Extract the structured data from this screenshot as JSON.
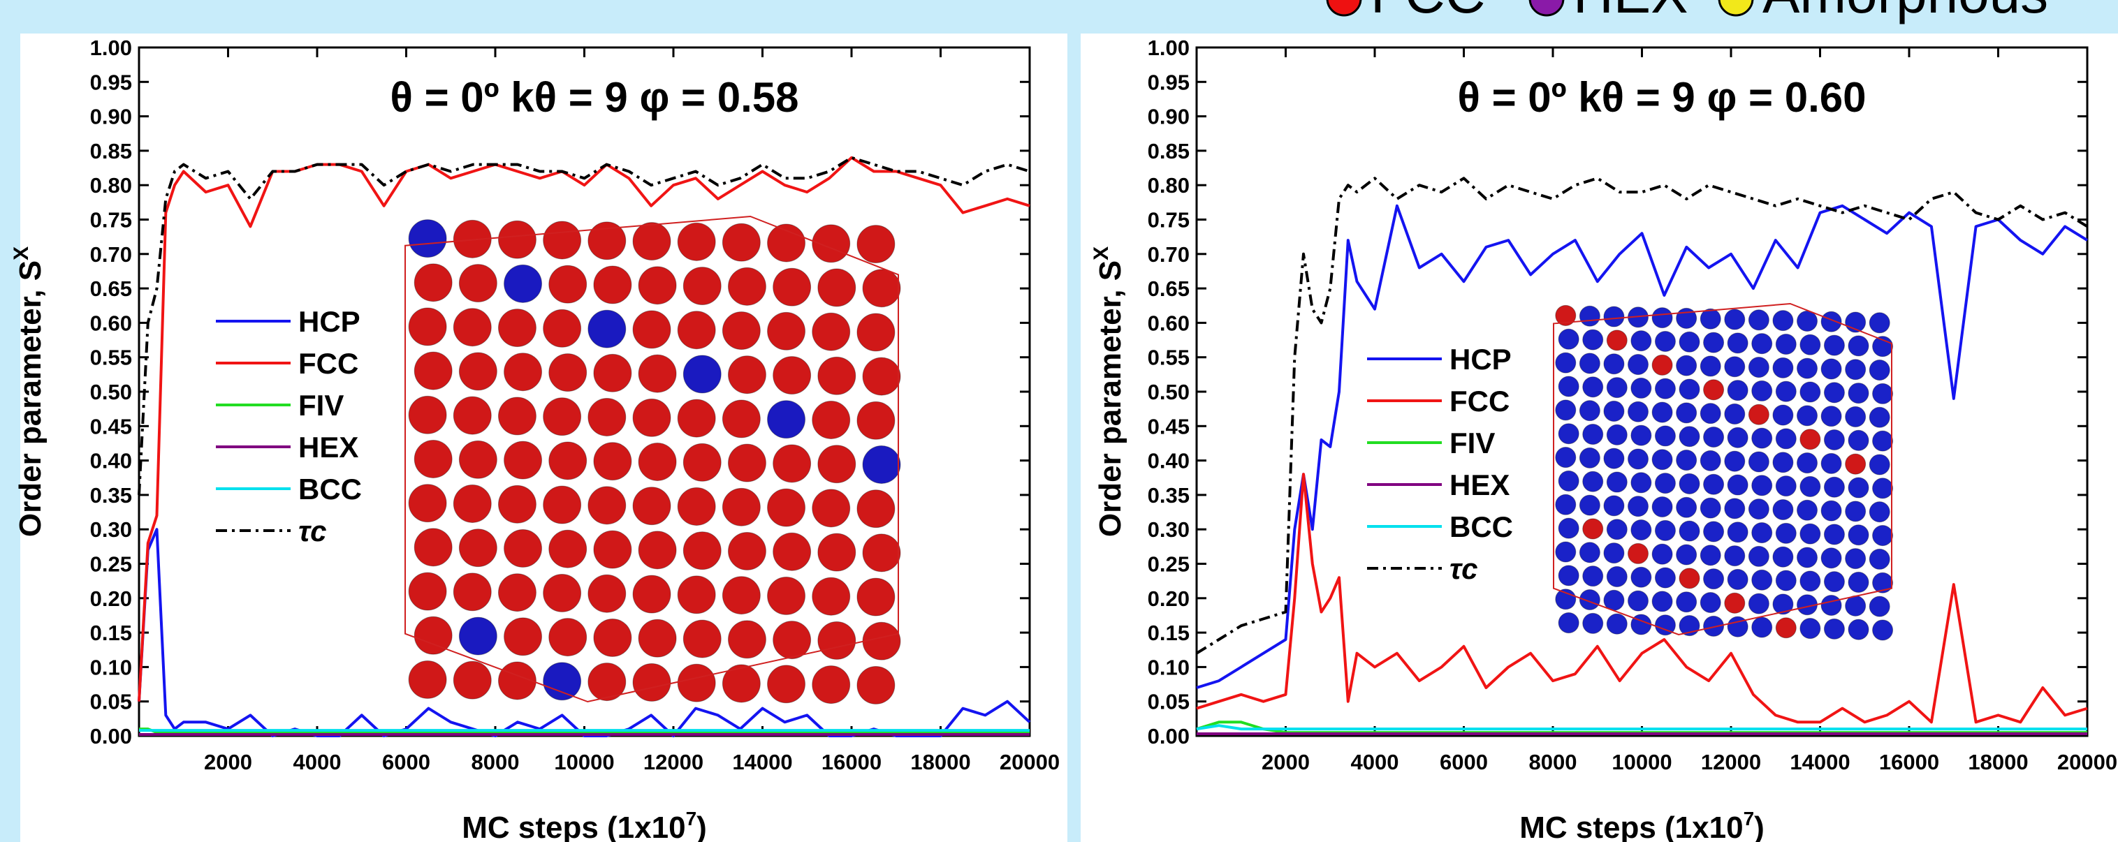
{
  "banner_legend": [
    {
      "name": "FCC",
      "color": "#ee1111"
    },
    {
      "name": "HEX",
      "color": "#8a1aa8"
    },
    {
      "name": "Amorphous",
      "color": "#f2e81a"
    }
  ],
  "chart_data": [
    {
      "type": "line",
      "title": "θ = 0º   kθ = 9   φ = 0.58",
      "xlabel": "MC steps (1x10",
      "xlabel_sup": "7",
      "xlabel_end": ")",
      "ylabel": "Order parameter, S",
      "ylabel_sup": "X",
      "xlim": [
        0,
        20000
      ],
      "ylim": [
        0,
        1
      ],
      "xticks": [
        2000,
        4000,
        6000,
        8000,
        10000,
        12000,
        14000,
        16000,
        18000,
        20000
      ],
      "yticks": [
        {
          "value": 0,
          "label": "0.00"
        },
        {
          "value": 0.05,
          "label": "0.05"
        },
        {
          "value": 0.1,
          "label": "0.10"
        },
        {
          "value": 0.15,
          "label": "0.15"
        },
        {
          "value": 0.2,
          "label": "0.20"
        },
        {
          "value": 0.25,
          "label": "0.25"
        },
        {
          "value": 0.3,
          "label": "0.30"
        },
        {
          "value": 0.35,
          "label": "0.35"
        },
        {
          "value": 0.4,
          "label": "0.40"
        },
        {
          "value": 0.45,
          "label": "0.45"
        },
        {
          "value": 0.5,
          "label": "0.50"
        },
        {
          "value": 0.55,
          "label": "0.55"
        },
        {
          "value": 0.6,
          "label": "0.60"
        },
        {
          "value": 0.65,
          "label": "0.65"
        },
        {
          "value": 0.7,
          "label": "0.70"
        },
        {
          "value": 0.75,
          "label": "0.75"
        },
        {
          "value": 0.8,
          "label": "0.80"
        },
        {
          "value": 0.85,
          "label": "0.85"
        },
        {
          "value": 0.9,
          "label": "0.90"
        },
        {
          "value": 0.95,
          "label": "0.95"
        },
        {
          "value": 1,
          "label": "1.00"
        }
      ],
      "x": [
        0,
        200,
        400,
        600,
        800,
        1000,
        1500,
        2000,
        2500,
        3000,
        3500,
        4000,
        4500,
        5000,
        5500,
        6000,
        6500,
        7000,
        7500,
        8000,
        8500,
        9000,
        9500,
        10000,
        10500,
        11000,
        11500,
        12000,
        12500,
        13000,
        13500,
        14000,
        14500,
        15000,
        15500,
        16000,
        16500,
        17000,
        17500,
        18000,
        18500,
        19000,
        19500,
        20000
      ],
      "series": [
        {
          "name": "HCP",
          "color": "#1414f0",
          "values": [
            0.05,
            0.27,
            0.3,
            0.03,
            0.01,
            0.02,
            0.02,
            0.01,
            0.03,
            0.0,
            0.01,
            0.0,
            0.0,
            0.03,
            0.0,
            0.01,
            0.04,
            0.02,
            0.01,
            0.0,
            0.02,
            0.01,
            0.03,
            0.0,
            0.0,
            0.01,
            0.03,
            0.0,
            0.04,
            0.03,
            0.01,
            0.04,
            0.02,
            0.03,
            0.0,
            0.0,
            0.01,
            0.0,
            0.0,
            0.0,
            0.04,
            0.03,
            0.05,
            0.02
          ]
        },
        {
          "name": "FCC",
          "color": "#f01414",
          "values": [
            0.05,
            0.28,
            0.32,
            0.76,
            0.8,
            0.82,
            0.79,
            0.8,
            0.74,
            0.82,
            0.82,
            0.83,
            0.83,
            0.82,
            0.77,
            0.82,
            0.83,
            0.81,
            0.82,
            0.83,
            0.82,
            0.81,
            0.82,
            0.8,
            0.83,
            0.81,
            0.77,
            0.8,
            0.81,
            0.78,
            0.8,
            0.82,
            0.8,
            0.79,
            0.81,
            0.84,
            0.82,
            0.82,
            0.81,
            0.8,
            0.76,
            0.77,
            0.78,
            0.77
          ]
        },
        {
          "name": "FIV",
          "color": "#22dd22",
          "values": [
            0.01,
            0.01,
            0.005,
            0.005,
            0.005,
            0.005,
            0.005,
            0.005,
            0.005,
            0.005,
            0.005,
            0.005,
            0.005,
            0.005,
            0.005,
            0.005,
            0.005,
            0.005,
            0.005,
            0.005,
            0.005,
            0.005,
            0.005,
            0.005,
            0.005,
            0.005,
            0.005,
            0.005,
            0.005,
            0.005,
            0.005,
            0.005,
            0.005,
            0.005,
            0.005,
            0.005,
            0.005,
            0.005,
            0.005,
            0.005,
            0.005,
            0.005,
            0.005,
            0.005
          ]
        },
        {
          "name": "HEX",
          "color": "#800080",
          "values": [
            0.002,
            0.002,
            0.002,
            0.002,
            0.002,
            0.002,
            0.002,
            0.002,
            0.002,
            0.002,
            0.002,
            0.002,
            0.002,
            0.002,
            0.002,
            0.002,
            0.002,
            0.002,
            0.002,
            0.002,
            0.002,
            0.002,
            0.002,
            0.002,
            0.002,
            0.002,
            0.002,
            0.002,
            0.002,
            0.002,
            0.002,
            0.002,
            0.002,
            0.002,
            0.002,
            0.002,
            0.002,
            0.002,
            0.002,
            0.002,
            0.002,
            0.002,
            0.002,
            0.002
          ]
        },
        {
          "name": "BCC",
          "color": "#00e0ee",
          "values": [
            0.008,
            0.008,
            0.008,
            0.008,
            0.008,
            0.008,
            0.008,
            0.008,
            0.008,
            0.008,
            0.008,
            0.008,
            0.008,
            0.008,
            0.008,
            0.008,
            0.008,
            0.008,
            0.008,
            0.008,
            0.008,
            0.008,
            0.008,
            0.008,
            0.008,
            0.008,
            0.008,
            0.008,
            0.008,
            0.008,
            0.008,
            0.008,
            0.008,
            0.008,
            0.008,
            0.008,
            0.008,
            0.008,
            0.008,
            0.008,
            0.008,
            0.008,
            0.008,
            0.008
          ]
        },
        {
          "name": "τc",
          "color": "#000000",
          "dash": "dash-dot",
          "values": [
            0.35,
            0.6,
            0.65,
            0.78,
            0.82,
            0.83,
            0.81,
            0.82,
            0.78,
            0.82,
            0.82,
            0.83,
            0.83,
            0.83,
            0.8,
            0.82,
            0.83,
            0.82,
            0.83,
            0.83,
            0.83,
            0.82,
            0.82,
            0.81,
            0.83,
            0.82,
            0.8,
            0.81,
            0.82,
            0.8,
            0.81,
            0.83,
            0.81,
            0.81,
            0.82,
            0.84,
            0.83,
            0.82,
            0.82,
            0.81,
            0.8,
            0.82,
            0.83,
            0.82
          ]
        }
      ]
    },
    {
      "type": "line",
      "title": "θ = 0º   kθ = 9   φ = 0.60",
      "xlabel": "MC steps (1x10",
      "xlabel_sup": "7",
      "xlabel_end": ")",
      "ylabel": "Order parameter, S",
      "ylabel_sup": "X",
      "xlim": [
        0,
        20000
      ],
      "ylim": [
        0,
        1
      ],
      "xticks": [
        2000,
        4000,
        6000,
        8000,
        10000,
        12000,
        14000,
        16000,
        18000,
        20000
      ],
      "yticks": [
        {
          "value": 0,
          "label": "0.00"
        },
        {
          "value": 0.05,
          "label": "0.05"
        },
        {
          "value": 0.1,
          "label": "0.10"
        },
        {
          "value": 0.15,
          "label": "0.15"
        },
        {
          "value": 0.2,
          "label": "0.20"
        },
        {
          "value": 0.25,
          "label": "0.25"
        },
        {
          "value": 0.3,
          "label": "0.30"
        },
        {
          "value": 0.35,
          "label": "0.35"
        },
        {
          "value": 0.4,
          "label": "0.40"
        },
        {
          "value": 0.45,
          "label": "0.45"
        },
        {
          "value": 0.5,
          "label": "0.50"
        },
        {
          "value": 0.55,
          "label": "0.55"
        },
        {
          "value": 0.6,
          "label": "0.60"
        },
        {
          "value": 0.65,
          "label": "0.65"
        },
        {
          "value": 0.7,
          "label": "0.70"
        },
        {
          "value": 0.75,
          "label": "0.75"
        },
        {
          "value": 0.8,
          "label": "0.80"
        },
        {
          "value": 0.85,
          "label": "0.85"
        },
        {
          "value": 0.9,
          "label": "0.90"
        },
        {
          "value": 0.95,
          "label": "0.95"
        },
        {
          "value": 1,
          "label": "1.00"
        }
      ],
      "x": [
        0,
        500,
        1000,
        1500,
        2000,
        2200,
        2400,
        2600,
        2800,
        3000,
        3200,
        3400,
        3600,
        4000,
        4500,
        5000,
        5500,
        6000,
        6500,
        7000,
        7500,
        8000,
        8500,
        9000,
        9500,
        10000,
        10500,
        11000,
        11500,
        12000,
        12500,
        13000,
        13500,
        14000,
        14500,
        15000,
        15500,
        16000,
        16500,
        17000,
        17500,
        18000,
        18500,
        19000,
        19500,
        20000
      ],
      "series": [
        {
          "name": "HCP",
          "color": "#1414f0",
          "values": [
            0.07,
            0.08,
            0.1,
            0.12,
            0.14,
            0.3,
            0.38,
            0.3,
            0.43,
            0.42,
            0.5,
            0.72,
            0.66,
            0.62,
            0.77,
            0.68,
            0.7,
            0.66,
            0.71,
            0.72,
            0.67,
            0.7,
            0.72,
            0.66,
            0.7,
            0.73,
            0.64,
            0.71,
            0.68,
            0.7,
            0.65,
            0.72,
            0.68,
            0.76,
            0.77,
            0.75,
            0.73,
            0.76,
            0.74,
            0.49,
            0.74,
            0.75,
            0.72,
            0.7,
            0.74,
            0.72
          ]
        },
        {
          "name": "FCC",
          "color": "#f01414",
          "values": [
            0.04,
            0.05,
            0.06,
            0.05,
            0.06,
            0.2,
            0.38,
            0.25,
            0.18,
            0.2,
            0.23,
            0.05,
            0.12,
            0.1,
            0.12,
            0.08,
            0.1,
            0.13,
            0.07,
            0.1,
            0.12,
            0.08,
            0.09,
            0.13,
            0.08,
            0.12,
            0.14,
            0.1,
            0.08,
            0.12,
            0.06,
            0.03,
            0.02,
            0.02,
            0.04,
            0.02,
            0.03,
            0.05,
            0.02,
            0.22,
            0.02,
            0.03,
            0.02,
            0.07,
            0.03,
            0.04
          ]
        },
        {
          "name": "FIV",
          "color": "#22dd22",
          "values": [
            0.01,
            0.02,
            0.02,
            0.01,
            0.005,
            0.005,
            0.005,
            0.005,
            0.005,
            0.005,
            0.005,
            0.005,
            0.005,
            0.005,
            0.005,
            0.005,
            0.005,
            0.005,
            0.005,
            0.005,
            0.005,
            0.005,
            0.005,
            0.005,
            0.005,
            0.005,
            0.005,
            0.005,
            0.005,
            0.005,
            0.005,
            0.005,
            0.005,
            0.005,
            0.005,
            0.005,
            0.005,
            0.005,
            0.005,
            0.005,
            0.005,
            0.005,
            0.005,
            0.005,
            0.005,
            0.005
          ]
        },
        {
          "name": "HEX",
          "color": "#800080",
          "values": [
            0.003,
            0.003,
            0.003,
            0.003,
            0.003,
            0.003,
            0.003,
            0.003,
            0.003,
            0.003,
            0.003,
            0.003,
            0.003,
            0.003,
            0.003,
            0.003,
            0.003,
            0.003,
            0.003,
            0.003,
            0.003,
            0.003,
            0.003,
            0.003,
            0.003,
            0.003,
            0.003,
            0.003,
            0.003,
            0.003,
            0.003,
            0.003,
            0.003,
            0.003,
            0.003,
            0.003,
            0.003,
            0.003,
            0.003,
            0.003,
            0.003,
            0.003,
            0.003,
            0.003,
            0.003,
            0.003
          ]
        },
        {
          "name": "BCC",
          "color": "#00e0ee",
          "values": [
            0.01,
            0.015,
            0.01,
            0.01,
            0.01,
            0.01,
            0.01,
            0.01,
            0.01,
            0.01,
            0.01,
            0.01,
            0.01,
            0.01,
            0.01,
            0.01,
            0.01,
            0.01,
            0.01,
            0.01,
            0.01,
            0.01,
            0.01,
            0.01,
            0.01,
            0.01,
            0.01,
            0.01,
            0.01,
            0.01,
            0.01,
            0.01,
            0.01,
            0.01,
            0.01,
            0.01,
            0.01,
            0.01,
            0.01,
            0.01,
            0.01,
            0.01,
            0.01,
            0.01,
            0.01,
            0.01
          ]
        },
        {
          "name": "τc",
          "color": "#000000",
          "dash": "dash-dot",
          "values": [
            0.12,
            0.14,
            0.16,
            0.17,
            0.18,
            0.55,
            0.7,
            0.62,
            0.6,
            0.65,
            0.78,
            0.8,
            0.79,
            0.81,
            0.78,
            0.8,
            0.79,
            0.81,
            0.78,
            0.8,
            0.79,
            0.78,
            0.8,
            0.81,
            0.79,
            0.79,
            0.8,
            0.78,
            0.8,
            0.79,
            0.78,
            0.77,
            0.78,
            0.77,
            0.76,
            0.77,
            0.76,
            0.75,
            0.78,
            0.79,
            0.76,
            0.75,
            0.77,
            0.75,
            0.76,
            0.74
          ]
        }
      ]
    }
  ]
}
